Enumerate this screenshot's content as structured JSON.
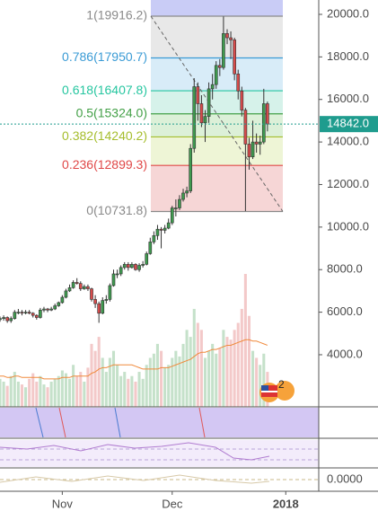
{
  "chart_data": {
    "type": "candlestick",
    "xlim": [
      0,
      87
    ],
    "xticks": [
      {
        "value": 17,
        "label": "Nov"
      },
      {
        "value": 47,
        "label": "Dec"
      },
      {
        "value": 78,
        "label": "2018"
      }
    ],
    "ylim": [
      20675,
      1550
    ],
    "yticks": [
      {
        "value": 20000,
        "label": "20000.0"
      },
      {
        "value": 18000,
        "label": "18000.0"
      },
      {
        "value": 16000,
        "label": "16000.0"
      },
      {
        "value": 14000,
        "label": "14000.0"
      },
      {
        "value": 12000,
        "label": "12000.0"
      },
      {
        "value": 10000,
        "label": "10000.0"
      },
      {
        "value": 8000,
        "label": "8000.0"
      },
      {
        "value": 6000,
        "label": "6000.0"
      },
      {
        "value": 4000,
        "label": "4000.0"
      }
    ],
    "up_color": "#3f9a4f",
    "down_color": "#d64b4b",
    "open": [
      5650,
      5700,
      5750,
      5600,
      5700,
      6000,
      6000,
      5980,
      6000,
      5950,
      5850,
      5750,
      6100,
      6150,
      6100,
      6150,
      6300,
      6450,
      6700,
      7000,
      7150,
      7400,
      7350,
      7100,
      7200,
      7100,
      6600,
      6400,
      5950,
      6550,
      6600,
      7250,
      7800,
      7800,
      8100,
      8250,
      8100,
      8250,
      8000,
      8200,
      8250,
      8750,
      9300,
      9600,
      9900,
      9850,
      9950,
      10200,
      10900,
      10900,
      11300,
      11600,
      11700,
      13700,
      16600,
      15800,
      14900,
      15200,
      16500,
      16700,
      17600,
      17500,
      19100,
      18900,
      18800,
      17200,
      16400,
      15500,
      13900,
      13300,
      14000,
      13900,
      14000,
      15800
    ],
    "high": [
      5800,
      5850,
      5800,
      5800,
      6100,
      6150,
      6100,
      6100,
      6100,
      6000,
      5900,
      6200,
      6250,
      6200,
      6250,
      6400,
      6500,
      6800,
      7100,
      7300,
      7500,
      7600,
      7450,
      7300,
      7300,
      7150,
      6800,
      6500,
      6700,
      6800,
      7350,
      8000,
      8000,
      8200,
      8350,
      8350,
      8350,
      8300,
      8300,
      8400,
      8850,
      9500,
      9800,
      10100,
      10000,
      10100,
      10400,
      11000,
      11300,
      11500,
      11800,
      11900,
      13900,
      17000,
      16800,
      16200,
      15500,
      16800,
      17200,
      17800,
      17900,
      19900,
      19300,
      19200,
      18900,
      17400,
      16600,
      15600,
      14200,
      15000,
      14400,
      14300,
      16500,
      15900
    ],
    "low": [
      5550,
      5600,
      5500,
      5500,
      5650,
      5900,
      5850,
      5900,
      5900,
      5750,
      5650,
      5700,
      6000,
      6000,
      6050,
      6100,
      6250,
      6400,
      6650,
      6950,
      7100,
      7300,
      7000,
      7050,
      7000,
      6500,
      6200,
      5500,
      5900,
      6400,
      6500,
      7200,
      7600,
      7700,
      8000,
      7950,
      8050,
      7950,
      7900,
      8100,
      8200,
      8700,
      9200,
      9400,
      9000,
      9700,
      9900,
      10100,
      10500,
      10800,
      11200,
      11400,
      11600,
      13500,
      15000,
      14700,
      14000,
      14900,
      16000,
      16500,
      17100,
      17400,
      18600,
      17900,
      16900,
      16000,
      15200,
      10750,
      12700,
      13200,
      13500,
      13400,
      13900,
      14500
    ],
    "close": [
      5700,
      5750,
      5600,
      5700,
      6000,
      6000,
      5980,
      6000,
      5950,
      5850,
      5750,
      6100,
      6150,
      6100,
      6150,
      6300,
      6450,
      6700,
      7000,
      7150,
      7400,
      7350,
      7100,
      7200,
      7100,
      6600,
      6400,
      5950,
      6550,
      6600,
      7250,
      7800,
      7800,
      8100,
      8250,
      8100,
      8250,
      8000,
      8200,
      8250,
      8750,
      9300,
      9600,
      9900,
      9850,
      9950,
      10200,
      10900,
      10900,
      11300,
      11600,
      11700,
      13700,
      16600,
      15800,
      14900,
      15200,
      16500,
      16700,
      17600,
      17500,
      19100,
      18900,
      18800,
      17200,
      16400,
      15500,
      13900,
      13300,
      14000,
      13900,
      14000,
      15800,
      14842
    ],
    "volume": [
      20,
      18,
      15,
      22,
      25,
      18,
      16,
      14,
      20,
      24,
      18,
      22,
      16,
      14,
      18,
      20,
      22,
      26,
      24,
      20,
      30,
      22,
      25,
      18,
      28,
      45,
      40,
      50,
      35,
      25,
      35,
      40,
      30,
      22,
      25,
      20,
      22,
      18,
      25,
      20,
      30,
      35,
      38,
      45,
      40,
      28,
      30,
      35,
      40,
      36,
      45,
      55,
      50,
      70,
      60,
      55,
      35,
      40,
      45,
      38,
      42,
      55,
      50,
      48,
      55,
      60,
      70,
      95,
      65,
      40,
      35,
      30,
      38,
      25
    ],
    "volume_ma": [
      22,
      22,
      21,
      21,
      22,
      22,
      21,
      21,
      21,
      21,
      21,
      21,
      20,
      20,
      20,
      20,
      20,
      21,
      21,
      21,
      22,
      22,
      22,
      22,
      22,
      24,
      25,
      27,
      28,
      28,
      29,
      30,
      30,
      30,
      30,
      30,
      30,
      29,
      28,
      27,
      27,
      27,
      27,
      27,
      28,
      28,
      28,
      29,
      30,
      31,
      32,
      33,
      34,
      36,
      38,
      39,
      39,
      40,
      41,
      41,
      42,
      43,
      44,
      44,
      45,
      46,
      47,
      48,
      48,
      47,
      47,
      46,
      45,
      44
    ],
    "volume_ma_color": "#f08a3c",
    "last_price": {
      "value": 14842,
      "label": "14842.0"
    },
    "last_price_color": "#1f9c8e",
    "fib_levels": [
      {
        "value": 19916.2,
        "label": "1(19916.2)",
        "color": "#8a8a8a",
        "fill": "#e8e8e8"
      },
      {
        "value": 17950.7,
        "label": "0.786(17950.7)",
        "color": "#3a9bd5",
        "fill": "#d8ecf8"
      },
      {
        "value": 16407.8,
        "label": "0.618(16407.8)",
        "color": "#26c6a0",
        "fill": "#d6f2ea"
      },
      {
        "value": 15324,
        "label": "0.5(15324.0)",
        "color": "#43a047",
        "fill": "#dcf0d8"
      },
      {
        "value": 14240.2,
        "label": "0.382(14240.2)",
        "color": "#a5bd2c",
        "fill": "#eef5d6"
      },
      {
        "value": 12899.3,
        "label": "0.236(12899.3)",
        "color": "#e04848",
        "fill": "#f6d6d6"
      },
      {
        "value": 10731.8,
        "label": "0(10731.8)",
        "color": "#8a8a8a",
        "fill": "#f6d6d6"
      }
    ],
    "badge": "2",
    "indicator_label": "0.0000"
  }
}
